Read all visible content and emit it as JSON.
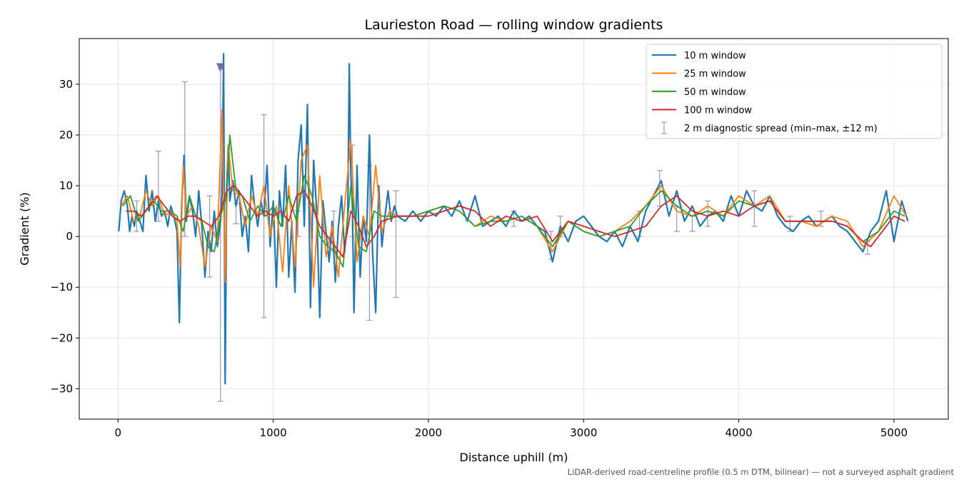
{
  "chart_data": {
    "type": "line",
    "title": "Laurieston Road — rolling window gradients",
    "xlabel": "Distance uphill (m)",
    "ylabel": "Gradient (%)",
    "footnote": "LiDAR-derived road-centreline profile (0.5 m DTM, bilinear) — not a surveyed asphalt gradient",
    "xlim": [
      -250,
      5350
    ],
    "ylim": [
      -36,
      39
    ],
    "xticks": [
      0,
      1000,
      2000,
      3000,
      4000,
      5000
    ],
    "xtick_labels": [
      "0",
      "1000",
      "2000",
      "3000",
      "4000",
      "5000"
    ],
    "yticks": [
      -30,
      -20,
      -10,
      0,
      10,
      20,
      30
    ],
    "ytick_labels": [
      "−30",
      "−20",
      "−10",
      "0",
      "10",
      "20",
      "30"
    ],
    "grid": true,
    "legend_position": "top-right",
    "colors": {
      "series_10": "#1f77b4",
      "series_25": "#ff7f0e",
      "series_50": "#2ca02c",
      "series_100": "#d62728",
      "spread": "#9f95b8",
      "marker": "#7b68a6"
    },
    "series": [
      {
        "name": "10 m window",
        "x": [
          5,
          20,
          40,
          60,
          75,
          90,
          105,
          120,
          140,
          160,
          180,
          200,
          220,
          240,
          260,
          280,
          300,
          320,
          340,
          360,
          380,
          395,
          410,
          425,
          440,
          460,
          480,
          500,
          520,
          540,
          560,
          580,
          600,
          620,
          640,
          660,
          670,
          680,
          690,
          700,
          710,
          720,
          740,
          760,
          780,
          800,
          820,
          840,
          860,
          880,
          900,
          920,
          940,
          960,
          980,
          1000,
          1020,
          1040,
          1060,
          1080,
          1100,
          1120,
          1140,
          1160,
          1180,
          1200,
          1220,
          1240,
          1260,
          1280,
          1300,
          1320,
          1340,
          1360,
          1380,
          1400,
          1420,
          1440,
          1460,
          1480,
          1490,
          1500,
          1510,
          1520,
          1540,
          1560,
          1580,
          1600,
          1620,
          1640,
          1660,
          1680,
          1700,
          1720,
          1740,
          1760,
          1780,
          1800,
          1850,
          1900,
          1950,
          2000,
          2050,
          2100,
          2150,
          2200,
          2250,
          2300,
          2350,
          2400,
          2450,
          2500,
          2550,
          2600,
          2650,
          2700,
          2750,
          2800,
          2850,
          2900,
          2950,
          3000,
          3050,
          3100,
          3150,
          3200,
          3250,
          3300,
          3350,
          3400,
          3450,
          3500,
          3550,
          3600,
          3650,
          3700,
          3750,
          3800,
          3850,
          3900,
          3950,
          4000,
          4050,
          4100,
          4150,
          4200,
          4250,
          4300,
          4350,
          4400,
          4450,
          4500,
          4550,
          4600,
          4650,
          4700,
          4750,
          4800,
          4850,
          4900,
          4950,
          5000,
          5050,
          5090
        ],
        "y": [
          1,
          7,
          9,
          6,
          1,
          4,
          2,
          5,
          3,
          1,
          12,
          5,
          9,
          3,
          7,
          4,
          5,
          2,
          6,
          4,
          1,
          -17,
          6,
          16,
          3,
          8,
          5,
          0,
          9,
          2,
          -8,
          1,
          -3,
          5,
          -2,
          3,
          8,
          36,
          -29,
          10,
          18,
          7,
          11,
          6,
          9,
          0,
          4,
          -3,
          12,
          6,
          2,
          7,
          4,
          14,
          -2,
          7,
          -10,
          9,
          2,
          14,
          -8,
          3,
          -11,
          15,
          22,
          2,
          26,
          -14,
          15,
          5,
          -16,
          7,
          1,
          -5,
          3,
          -9,
          2,
          8,
          -3,
          4,
          34,
          12,
          6,
          -15,
          14,
          -8,
          4,
          -1,
          20,
          -3,
          -15,
          10,
          -2,
          4,
          9,
          3,
          6,
          4,
          3,
          5,
          3,
          5,
          4,
          6,
          4,
          7,
          3,
          8,
          2,
          3,
          4,
          2,
          5,
          3,
          4,
          2,
          1,
          -5,
          2,
          -1,
          3,
          4,
          2,
          0,
          -1,
          1,
          -2,
          2,
          -1,
          5,
          8,
          11,
          4,
          9,
          3,
          6,
          2,
          4,
          5,
          3,
          8,
          4,
          9,
          6,
          5,
          8,
          4,
          2,
          1,
          3,
          4,
          2,
          3,
          4,
          2,
          1,
          -1,
          -3,
          1,
          3,
          9,
          -1,
          7,
          3
        ]
      },
      {
        "name": "25 m window",
        "x": [
          20,
          60,
          100,
          140,
          180,
          220,
          260,
          300,
          340,
          380,
          400,
          420,
          440,
          480,
          520,
          560,
          600,
          640,
          670,
          690,
          710,
          740,
          780,
          820,
          860,
          900,
          940,
          980,
          1020,
          1060,
          1100,
          1140,
          1180,
          1220,
          1260,
          1300,
          1340,
          1380,
          1420,
          1460,
          1500,
          1540,
          1580,
          1620,
          1660,
          1700,
          1750,
          1800,
          1900,
          2000,
          2100,
          2200,
          2300,
          2400,
          2500,
          2600,
          2700,
          2800,
          2900,
          3000,
          3100,
          3200,
          3300,
          3400,
          3500,
          3600,
          3700,
          3800,
          3900,
          4000,
          4100,
          4200,
          4300,
          4400,
          4500,
          4600,
          4700,
          4800,
          4900,
          5000,
          5080
        ],
        "y": [
          6,
          8,
          3,
          4,
          9,
          6,
          8,
          4,
          5,
          3,
          -6,
          14,
          4,
          6,
          2,
          -6,
          2,
          -1,
          25,
          -9,
          18,
          9,
          8,
          2,
          8,
          4,
          10,
          0,
          6,
          -7,
          10,
          -6,
          15,
          18,
          -10,
          12,
          -4,
          2,
          -8,
          6,
          19,
          -5,
          4,
          0,
          14,
          1,
          5,
          4,
          4,
          5,
          6,
          5,
          2,
          4,
          3,
          4,
          2,
          -3,
          3,
          1,
          0,
          1,
          3,
          6,
          10,
          5,
          4,
          6,
          4,
          8,
          6,
          8,
          3,
          3,
          2,
          4,
          3,
          -2,
          1,
          8,
          4
        ]
      },
      {
        "name": "50 m window",
        "x": [
          30,
          80,
          130,
          180,
          230,
          280,
          330,
          380,
          420,
          460,
          500,
          540,
          580,
          620,
          660,
          700,
          720,
          760,
          800,
          850,
          900,
          950,
          1000,
          1050,
          1100,
          1150,
          1200,
          1250,
          1300,
          1350,
          1400,
          1450,
          1500,
          1550,
          1600,
          1650,
          1700,
          1800,
          1900,
          2000,
          2100,
          2200,
          2300,
          2400,
          2500,
          2600,
          2700,
          2800,
          2900,
          3000,
          3100,
          3200,
          3300,
          3400,
          3500,
          3600,
          3700,
          3800,
          3900,
          4000,
          4100,
          4200,
          4300,
          4400,
          4500,
          4600,
          4700,
          4800,
          4900,
          5000,
          5070
        ],
        "y": [
          6,
          8,
          3,
          5,
          7,
          5,
          5,
          4,
          1,
          8,
          4,
          3,
          -2,
          -3,
          4,
          8,
          20,
          9,
          8,
          3,
          6,
          4,
          6,
          2,
          8,
          3,
          12,
          8,
          0,
          -2,
          -3,
          -6,
          10,
          -2,
          -3,
          5,
          4,
          4,
          4,
          5,
          6,
          5,
          2,
          3,
          3,
          4,
          2,
          -2,
          3,
          1,
          0,
          1,
          2,
          6,
          9,
          6,
          4,
          5,
          4,
          7,
          6,
          7,
          3,
          3,
          3,
          3,
          2,
          -1,
          1,
          5,
          4
        ]
      },
      {
        "name": "100 m window",
        "x": [
          50,
          100,
          150,
          200,
          250,
          300,
          350,
          400,
          450,
          500,
          550,
          600,
          650,
          700,
          750,
          800,
          850,
          900,
          950,
          1000,
          1050,
          1100,
          1150,
          1200,
          1250,
          1300,
          1350,
          1400,
          1450,
          1500,
          1550,
          1600,
          1650,
          1700,
          1800,
          1900,
          2000,
          2100,
          2200,
          2300,
          2400,
          2500,
          2600,
          2700,
          2800,
          2900,
          3000,
          3100,
          3200,
          3300,
          3400,
          3500,
          3600,
          3700,
          3800,
          3900,
          4000,
          4100,
          4200,
          4300,
          4400,
          4500,
          4600,
          4700,
          4800,
          4850,
          4900,
          5000,
          5070
        ],
        "y": [
          5,
          5,
          4,
          6,
          8,
          6,
          4,
          3,
          4,
          4,
          3,
          2,
          4,
          9,
          10,
          8,
          6,
          4,
          5,
          4,
          5,
          3,
          8,
          9,
          6,
          2,
          0,
          -2,
          -4,
          5,
          2,
          -2,
          0,
          3,
          4,
          4,
          4,
          5,
          6,
          5,
          2,
          4,
          3,
          4,
          -1,
          3,
          2,
          1,
          0,
          1,
          2,
          6,
          8,
          5,
          4,
          5,
          4,
          6,
          7,
          3,
          3,
          3,
          3,
          2,
          -1,
          -2,
          0,
          4,
          3
        ]
      }
    ],
    "spread": {
      "name": "2 m diagnostic spread (min–max, ±12 m)",
      "x": [
        120,
        260,
        430,
        590,
        660,
        760,
        940,
        1160,
        1390,
        1510,
        1620,
        1790,
        2550,
        2790,
        2850,
        3360,
        3490,
        3600,
        3700,
        3800,
        4100,
        4330,
        4530,
        4830
      ],
      "low": [
        1,
        3,
        0,
        -8,
        -32.5,
        2.5,
        -16,
        0,
        -3,
        0,
        -16.5,
        -12,
        2,
        -4.5,
        0,
        0,
        6,
        1,
        1,
        2,
        2,
        1,
        2,
        -3.5
      ],
      "high": [
        7,
        16.8,
        30.5,
        8,
        33,
        6.5,
        24,
        5,
        5,
        18,
        14,
        9,
        5,
        1,
        4,
        5,
        13,
        6,
        4,
        7,
        9,
        4,
        5,
        -1
      ]
    },
    "marker": {
      "x": 660,
      "y": 33.3
    }
  }
}
